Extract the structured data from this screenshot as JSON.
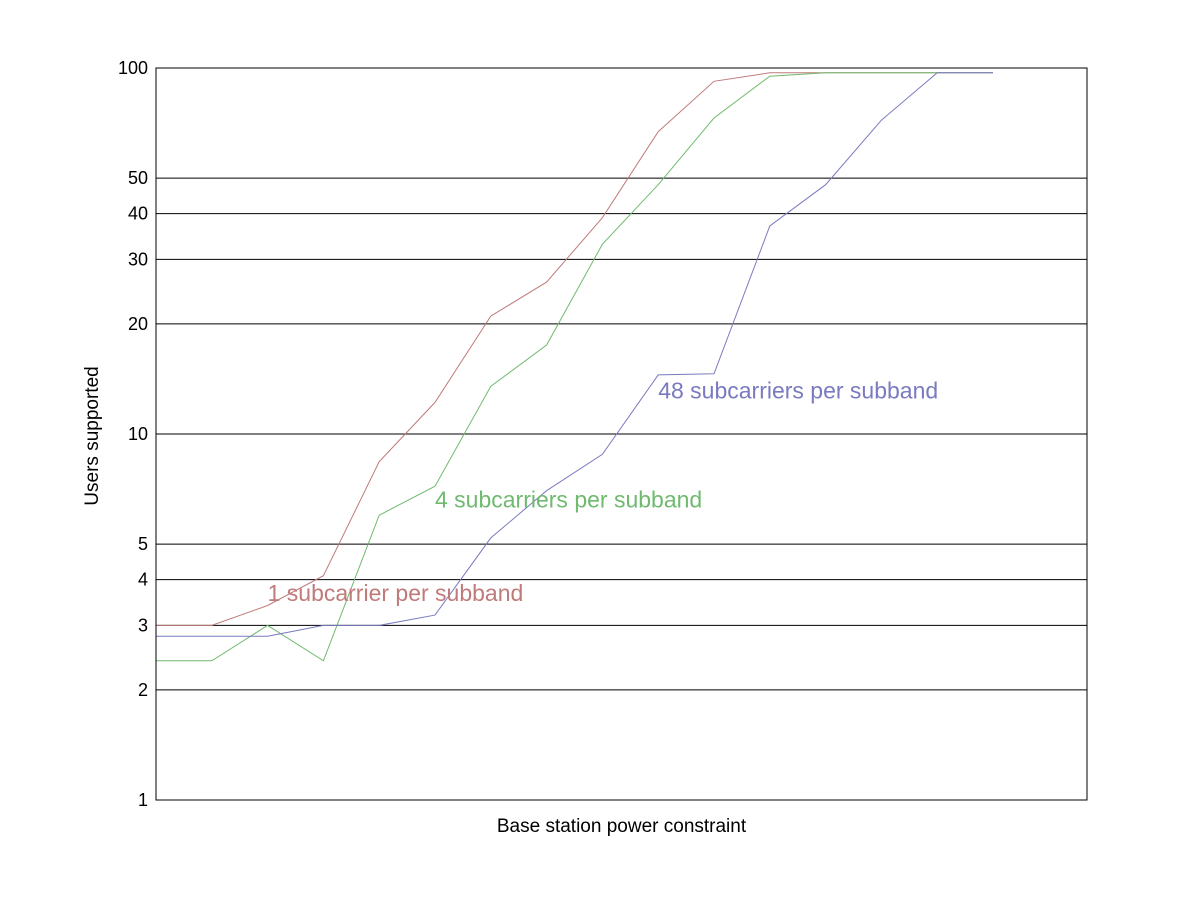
{
  "chart_data": {
    "type": "line",
    "title": "",
    "xlabel": "Base station power constraint",
    "ylabel": "Users supported",
    "y_scale": "log",
    "ylim": [
      1,
      100
    ],
    "xlim": [
      0,
      16
    ],
    "x_ticks_shown": false,
    "grid": "horizontal",
    "legend": "inline labels",
    "yticks": [
      {
        "value": 1,
        "label": "1"
      },
      {
        "value": 2,
        "label": "2"
      },
      {
        "value": 3,
        "label": "3"
      },
      {
        "value": 4,
        "label": "4"
      },
      {
        "value": 5,
        "label": "5"
      },
      {
        "value": 10,
        "label": "10"
      },
      {
        "value": 20,
        "label": "20"
      },
      {
        "value": 30,
        "label": "30"
      },
      {
        "value": 40,
        "label": "40"
      },
      {
        "value": 50,
        "label": "50"
      },
      {
        "value": 100,
        "label": "100"
      }
    ],
    "x": [
      0,
      1,
      2,
      3,
      4,
      5,
      6,
      7,
      8,
      9,
      10,
      11,
      12,
      13,
      14,
      15
    ],
    "series": [
      {
        "name": "1 subcarrier per subband",
        "color": "#c07a7a",
        "values": [
          3.0,
          3.0,
          3.4,
          4.1,
          8.4,
          12.2,
          21.0,
          26.0,
          39.0,
          67.0,
          92.0,
          97.0,
          97.0,
          97.0,
          97.0,
          97.0
        ],
        "label_at": [
          2,
          3.5
        ]
      },
      {
        "name": "4 subcarriers per subband",
        "color": "#6fba6f",
        "values": [
          2.4,
          2.4,
          3.0,
          2.4,
          6.0,
          7.2,
          13.5,
          17.5,
          33.0,
          48.0,
          73.0,
          95.0,
          97.0,
          97.0,
          97.0,
          97.0
        ],
        "label_at": [
          5,
          6.3
        ]
      },
      {
        "name": "48 subcarriers per subband",
        "color": "#7a7ac0",
        "values": [
          2.8,
          2.8,
          2.8,
          3.0,
          3.0,
          3.2,
          5.2,
          7.0,
          8.8,
          14.5,
          14.6,
          37.0,
          48.0,
          72.0,
          97.0,
          97.0
        ],
        "label_at": [
          9,
          12.5
        ]
      }
    ]
  }
}
